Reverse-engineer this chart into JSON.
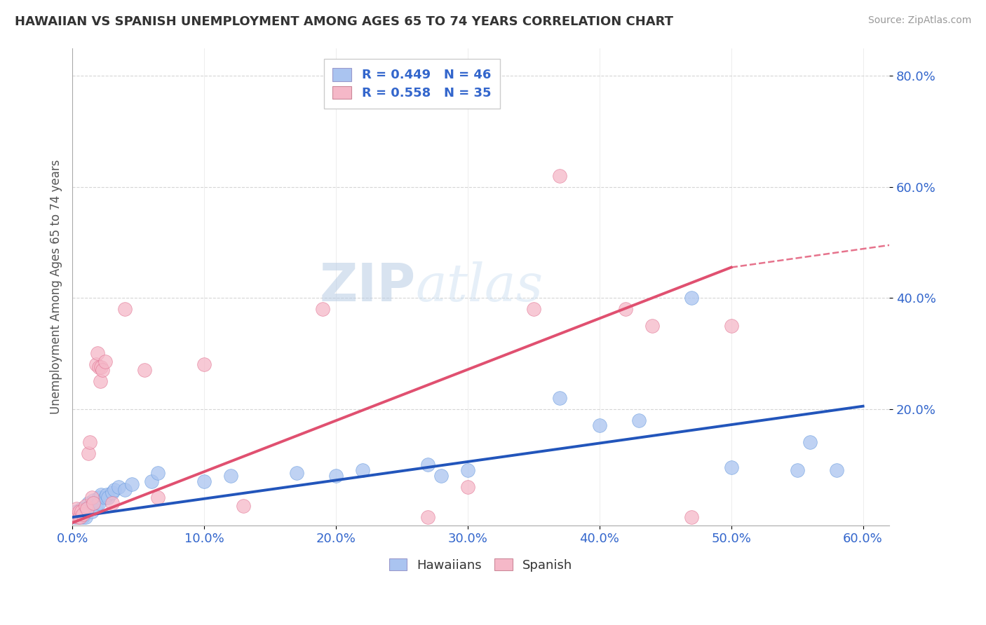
{
  "title": "HAWAIIAN VS SPANISH UNEMPLOYMENT AMONG AGES 65 TO 74 YEARS CORRELATION CHART",
  "source": "Source: ZipAtlas.com",
  "ylabel": "Unemployment Among Ages 65 to 74 years",
  "xlim": [
    0.0,
    0.62
  ],
  "ylim": [
    -0.01,
    0.85
  ],
  "xtick_labels": [
    "0.0%",
    "",
    "10.0%",
    "",
    "20.0%",
    "",
    "30.0%",
    "",
    "40.0%",
    "",
    "50.0%",
    "",
    "60.0%"
  ],
  "xtick_vals": [
    0.0,
    0.05,
    0.1,
    0.15,
    0.2,
    0.25,
    0.3,
    0.35,
    0.4,
    0.45,
    0.5,
    0.55,
    0.6
  ],
  "ytick_labels": [
    "20.0%",
    "40.0%",
    "60.0%",
    "80.0%"
  ],
  "ytick_vals": [
    0.2,
    0.4,
    0.6,
    0.8
  ],
  "grid_color": "#cccccc",
  "hawaiian_color": "#aac4f0",
  "hawaiian_edge_color": "#6699dd",
  "spanish_color": "#f5b8c8",
  "spanish_edge_color": "#e07090",
  "hawaiian_trend_color": "#2255bb",
  "spanish_trend_color": "#e05070",
  "legend_r_hawaiian": "R = 0.449",
  "legend_n_hawaiian": "N = 46",
  "legend_r_spanish": "R = 0.558",
  "legend_n_spanish": "N = 35",
  "watermark_zip": "ZIP",
  "watermark_atlas": "atlas",
  "hawaiian_points": [
    [
      0.002,
      0.005
    ],
    [
      0.003,
      0.015
    ],
    [
      0.004,
      0.01
    ],
    [
      0.005,
      0.005
    ],
    [
      0.006,
      0.01
    ],
    [
      0.007,
      0.02
    ],
    [
      0.008,
      0.005
    ],
    [
      0.008,
      0.015
    ],
    [
      0.009,
      0.01
    ],
    [
      0.01,
      0.02
    ],
    [
      0.01,
      0.005
    ],
    [
      0.012,
      0.03
    ],
    [
      0.013,
      0.025
    ],
    [
      0.015,
      0.03
    ],
    [
      0.015,
      0.015
    ],
    [
      0.016,
      0.035
    ],
    [
      0.018,
      0.025
    ],
    [
      0.02,
      0.04
    ],
    [
      0.02,
      0.03
    ],
    [
      0.022,
      0.045
    ],
    [
      0.025,
      0.04
    ],
    [
      0.026,
      0.045
    ],
    [
      0.027,
      0.04
    ],
    [
      0.03,
      0.05
    ],
    [
      0.032,
      0.055
    ],
    [
      0.035,
      0.06
    ],
    [
      0.04,
      0.055
    ],
    [
      0.045,
      0.065
    ],
    [
      0.06,
      0.07
    ],
    [
      0.065,
      0.085
    ],
    [
      0.1,
      0.07
    ],
    [
      0.12,
      0.08
    ],
    [
      0.17,
      0.085
    ],
    [
      0.2,
      0.08
    ],
    [
      0.22,
      0.09
    ],
    [
      0.27,
      0.1
    ],
    [
      0.28,
      0.08
    ],
    [
      0.3,
      0.09
    ],
    [
      0.37,
      0.22
    ],
    [
      0.4,
      0.17
    ],
    [
      0.43,
      0.18
    ],
    [
      0.47,
      0.4
    ],
    [
      0.5,
      0.095
    ],
    [
      0.55,
      0.09
    ],
    [
      0.56,
      0.14
    ],
    [
      0.58,
      0.09
    ]
  ],
  "spanish_points": [
    [
      0.002,
      0.01
    ],
    [
      0.003,
      0.02
    ],
    [
      0.004,
      0.005
    ],
    [
      0.005,
      0.015
    ],
    [
      0.006,
      0.005
    ],
    [
      0.007,
      0.015
    ],
    [
      0.008,
      0.01
    ],
    [
      0.01,
      0.025
    ],
    [
      0.011,
      0.02
    ],
    [
      0.012,
      0.12
    ],
    [
      0.013,
      0.14
    ],
    [
      0.015,
      0.04
    ],
    [
      0.016,
      0.03
    ],
    [
      0.018,
      0.28
    ],
    [
      0.019,
      0.3
    ],
    [
      0.02,
      0.275
    ],
    [
      0.021,
      0.25
    ],
    [
      0.022,
      0.275
    ],
    [
      0.023,
      0.27
    ],
    [
      0.025,
      0.285
    ],
    [
      0.03,
      0.03
    ],
    [
      0.04,
      0.38
    ],
    [
      0.055,
      0.27
    ],
    [
      0.065,
      0.04
    ],
    [
      0.1,
      0.28
    ],
    [
      0.13,
      0.025
    ],
    [
      0.19,
      0.38
    ],
    [
      0.27,
      0.005
    ],
    [
      0.3,
      0.06
    ],
    [
      0.35,
      0.38
    ],
    [
      0.37,
      0.62
    ],
    [
      0.42,
      0.38
    ],
    [
      0.44,
      0.35
    ],
    [
      0.47,
      0.005
    ],
    [
      0.5,
      0.35
    ]
  ],
  "spanish_trend_x_solid_end": 0.5,
  "hawaiian_trend_x_end": 0.6
}
